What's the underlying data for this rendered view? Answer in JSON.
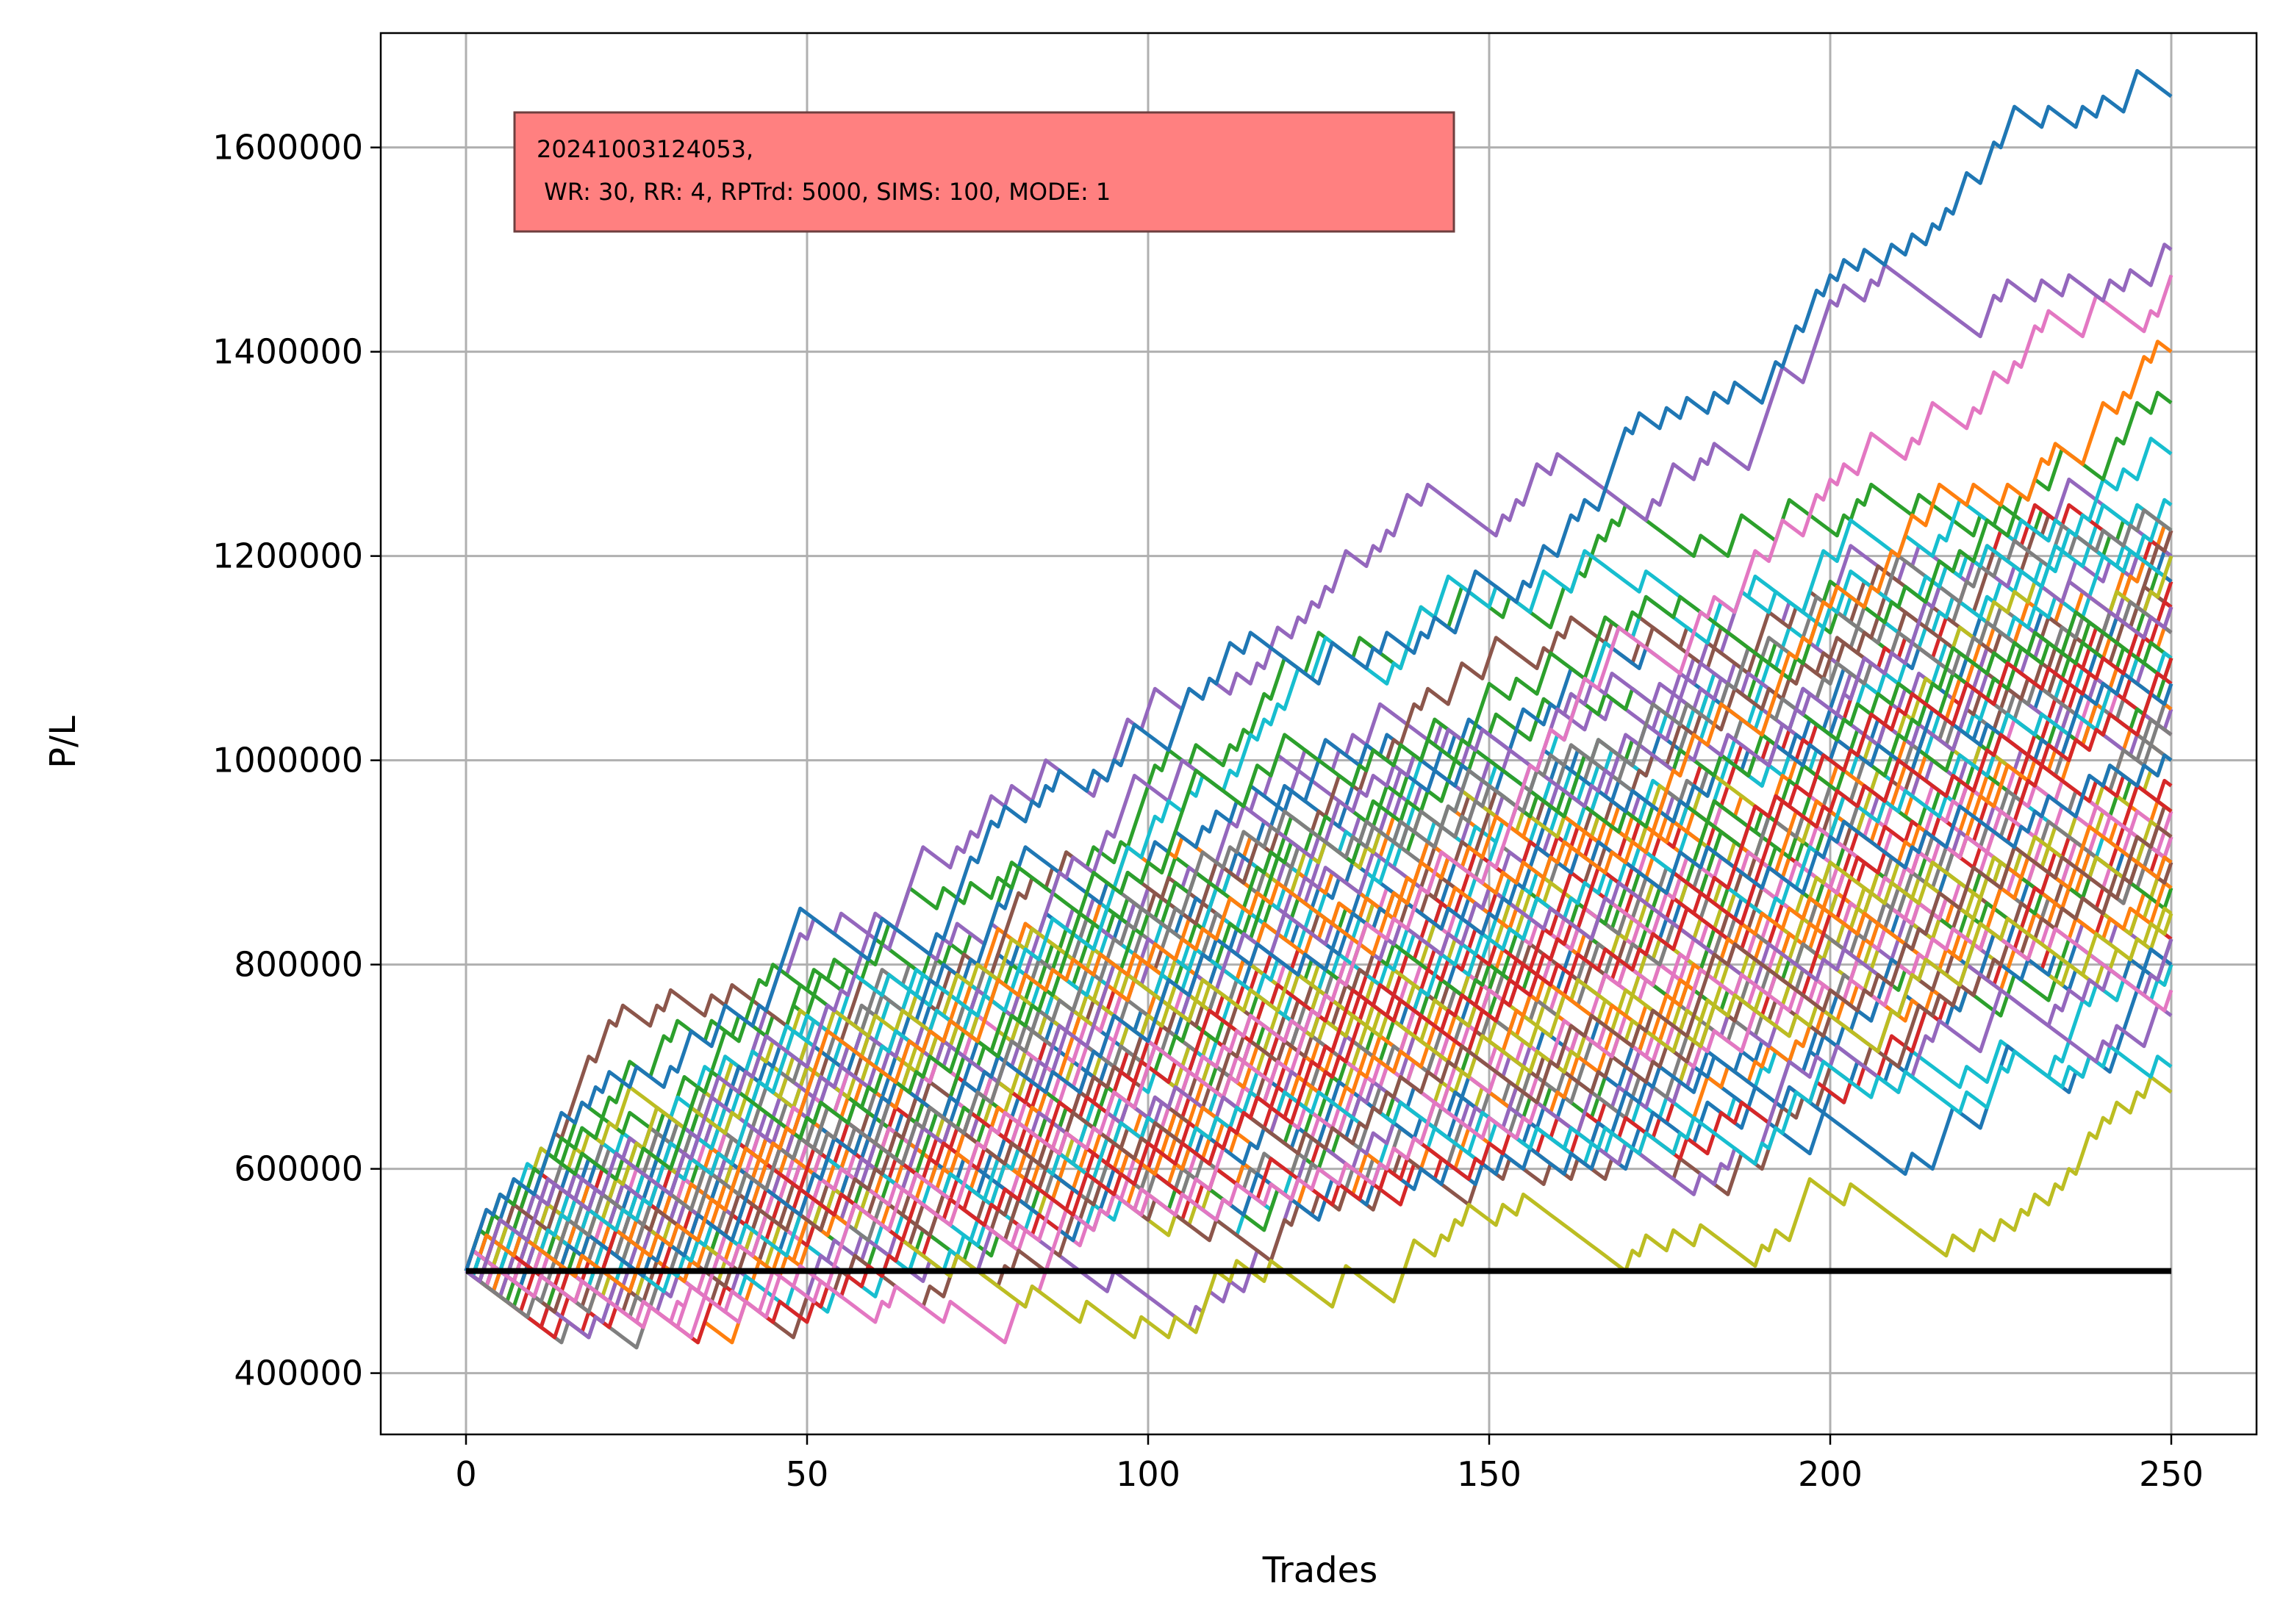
{
  "chart_data": {
    "type": "line",
    "title": "",
    "xlabel": "Trades",
    "ylabel": "P/L",
    "xlim": [
      -12.5,
      262.5
    ],
    "ylim": [
      340000,
      1712000
    ],
    "x_ticks": [
      0,
      50,
      100,
      150,
      200,
      250
    ],
    "y_ticks": [
      400000,
      600000,
      800000,
      1000000,
      1200000,
      1400000,
      1600000
    ],
    "grid": true,
    "legend": "none",
    "annotation": {
      "line1": "20241003124053,",
      "line2": " WR: 30, RR: 4, RPTrd: 5000, SIMS: 100, MODE: 1",
      "position": "top-left",
      "box_color": "#ff8080",
      "border_color": "#6f3f3f"
    },
    "simulation": {
      "start_value": 500000,
      "trades": 250,
      "sims": 100,
      "win_rate": 30,
      "reward_risk": 4,
      "risk_per_trade": 5000
    },
    "baseline": {
      "value": 500000,
      "color": "#000000"
    },
    "series_colors": [
      "#1f77b4",
      "#ff7f0e",
      "#2ca02c",
      "#d62728",
      "#9467bd",
      "#8c564b",
      "#e377c2",
      "#7f7f7f",
      "#bcbd22",
      "#17becf"
    ],
    "highlight_series": [
      {
        "final": 1650000,
        "color": "#1f77b4"
      },
      {
        "final": 1500000,
        "color": "#9467bd"
      },
      {
        "final": 1475000,
        "color": "#e377c2"
      },
      {
        "final": 1400000,
        "color": "#ff7f0e"
      },
      {
        "final": 1350000,
        "color": "#2ca02c"
      },
      {
        "final": 1300000,
        "color": "#17becf"
      },
      {
        "final": 1225000,
        "color": "#7f7f7f"
      },
      {
        "final": 1100000,
        "color": "#d62728"
      },
      {
        "final": 1000000,
        "color": "#1f77b4"
      },
      {
        "final": 925000,
        "color": "#8c564b"
      },
      {
        "final": 850000,
        "color": "#bcbd22"
      },
      {
        "final": 775000,
        "color": "#e377c2"
      },
      {
        "final": 750000,
        "color": "#9467bd"
      },
      {
        "final": 700000,
        "color": "#17becf"
      },
      {
        "final": 675000,
        "color": "#bcbd22"
      }
    ]
  }
}
